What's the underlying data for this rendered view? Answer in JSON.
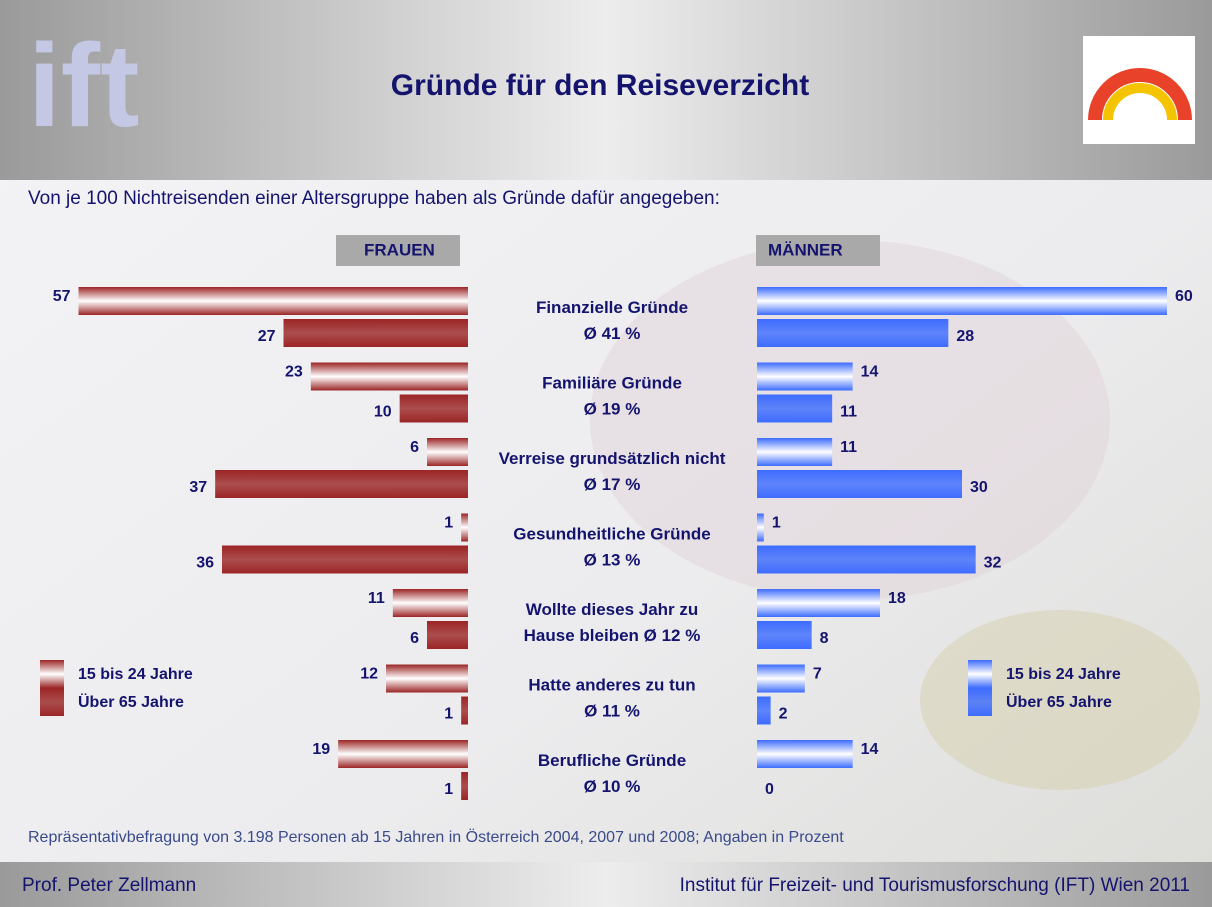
{
  "header": {
    "logo": "ift",
    "title": "Gründe für den Reiseverzicht"
  },
  "chart_data": {
    "type": "butterfly",
    "subtitle": "Von je 100 Nichtreisenden einer Altersgruppe haben als Gründe dafür angegeben:",
    "categories": [
      "Finanzielle Gründe\nØ 41 %",
      "Familiäre Gründe\nØ 19 %",
      "Verreise grundsätzlich nicht\nØ 17 %",
      "Gesundheitliche Gründe\nØ 13 %",
      "Wollte dieses Jahr zu\nHause bleiben Ø 12 %",
      "Hatte anderes zu tun\nØ 11 %",
      "Berufliche Gründe\nØ 10 %"
    ],
    "xlim": [
      0,
      60
    ],
    "panels": [
      {
        "title": "FRAUEN",
        "series": [
          {
            "name": "15 bis 24 Jahre",
            "color": "#9b2525",
            "values": [
              57,
              23,
              6,
              1,
              11,
              12,
              19
            ]
          },
          {
            "name": "Über 65 Jahre",
            "color": "#9b2525",
            "values": [
              27,
              10,
              37,
              36,
              6,
              1,
              1
            ]
          }
        ]
      },
      {
        "title": "MÄNNER",
        "series": [
          {
            "name": "15 bis 24 Jahre",
            "color": "#3d6cff",
            "values": [
              60,
              14,
              11,
              1,
              18,
              7,
              14
            ]
          },
          {
            "name": "Über 65 Jahre",
            "color": "#3d6cff",
            "values": [
              28,
              11,
              30,
              32,
              8,
              2,
              0
            ]
          }
        ]
      }
    ],
    "note": "Repräsentativbefragung von 3.198 Personen ab 15 Jahren in Österreich 2004, 2007 und 2008; Angaben in Prozent"
  },
  "footer": {
    "left": "Prof. Peter Zellmann",
    "right": "Institut für Freizeit- und Tourismusforschung (IFT) Wien  2011"
  }
}
